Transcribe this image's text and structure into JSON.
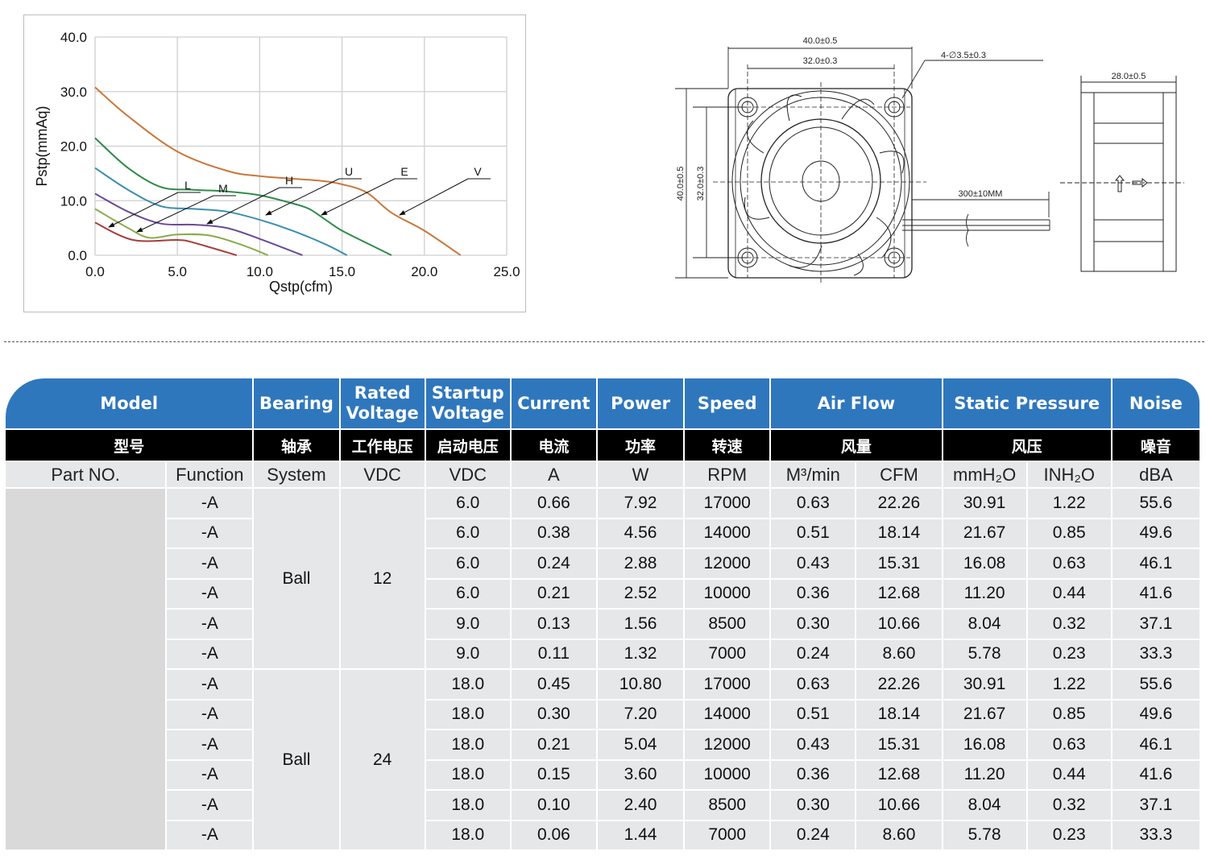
{
  "chart_data": {
    "type": "line",
    "xlabel": "Qstp(cfm)",
    "ylabel": "Pstp(mmAq)",
    "xlim": [
      0,
      25
    ],
    "ylim": [
      0,
      40
    ],
    "x_ticks": [
      "0.0",
      "5.0",
      "10.0",
      "15.0",
      "20.0",
      "25.0"
    ],
    "y_ticks": [
      "0.0",
      "10.0",
      "20.0",
      "30.0",
      "40.0"
    ],
    "grid": true,
    "series": [
      {
        "name": "V",
        "color": "#c9773a",
        "points": [
          [
            0,
            30.8
          ],
          [
            2,
            25.5
          ],
          [
            5,
            19
          ],
          [
            8,
            15.5
          ],
          [
            10,
            14.5
          ],
          [
            13.5,
            13.7
          ],
          [
            15,
            13
          ],
          [
            16.5,
            11.5
          ],
          [
            18,
            7.8
          ],
          [
            20,
            4.5
          ],
          [
            22.2,
            0
          ]
        ]
      },
      {
        "name": "E",
        "color": "#2e8b4a",
        "points": [
          [
            0,
            21.5
          ],
          [
            2,
            16
          ],
          [
            4,
            12.5
          ],
          [
            6,
            12
          ],
          [
            8,
            11.7
          ],
          [
            10,
            11
          ],
          [
            12,
            9.5
          ],
          [
            13,
            8.5
          ],
          [
            14,
            6.5
          ],
          [
            15,
            4.5
          ],
          [
            17,
            1.5
          ],
          [
            18,
            0
          ]
        ]
      },
      {
        "name": "U",
        "color": "#3a8fb0",
        "points": [
          [
            0,
            16
          ],
          [
            2,
            12
          ],
          [
            4,
            9
          ],
          [
            6,
            8.5
          ],
          [
            8,
            8
          ],
          [
            10,
            6.5
          ],
          [
            12,
            4.5
          ],
          [
            14,
            2
          ],
          [
            15.3,
            0
          ]
        ]
      },
      {
        "name": "H",
        "color": "#6a4a95",
        "points": [
          [
            0,
            11.3
          ],
          [
            2,
            8
          ],
          [
            4,
            5.8
          ],
          [
            6,
            5.6
          ],
          [
            8,
            5
          ],
          [
            10,
            3
          ],
          [
            12.6,
            0
          ]
        ]
      },
      {
        "name": "M",
        "color": "#8aab4a",
        "points": [
          [
            0,
            8.5
          ],
          [
            2,
            5
          ],
          [
            3.3,
            3.2
          ],
          [
            5,
            3.8
          ],
          [
            7,
            3.6
          ],
          [
            9,
            1.8
          ],
          [
            10.5,
            0
          ]
        ]
      },
      {
        "name": "L",
        "color": "#a83c3c",
        "points": [
          [
            0,
            6
          ],
          [
            2.3,
            2.8
          ],
          [
            5,
            2.8
          ],
          [
            6,
            2.3
          ],
          [
            8.6,
            0
          ]
        ]
      }
    ]
  },
  "drawing": {
    "width_outer": "40.0±0.5",
    "width_hole": "32.0±0.3",
    "hole_spec": "4-∅3.5±0.3",
    "height_outer": "40.0±0.5",
    "height_hole": "32.0±0.3",
    "lead_length": "300±10MM",
    "depth": "28.0±0.5"
  },
  "table": {
    "header_en": [
      "Model",
      "Bearing",
      "Rated Voltage",
      "Startup Voltage",
      "Current",
      "Power",
      "Speed",
      "Air Flow",
      "Static Pressure",
      "Noise"
    ],
    "header_cn": [
      "型号",
      "轴承",
      "工作电压",
      "启动电压",
      "电流",
      "功率",
      "转速",
      "风量",
      "风压",
      "噪音"
    ],
    "units": [
      "Part NO.",
      "Function",
      "System",
      "VDC",
      "VDC",
      "A",
      "W",
      "RPM",
      "M³/min",
      "CFM",
      "mmH₂O",
      "INH₂O",
      "dBA"
    ],
    "groups": [
      {
        "bearing": "Ball",
        "voltage": "12",
        "rows": [
          [
            "-A",
            "6.0",
            "0.66",
            "7.92",
            "17000",
            "0.63",
            "22.26",
            "30.91",
            "1.22",
            "55.6"
          ],
          [
            "-A",
            "6.0",
            "0.38",
            "4.56",
            "14000",
            "0.51",
            "18.14",
            "21.67",
            "0.85",
            "49.6"
          ],
          [
            "-A",
            "6.0",
            "0.24",
            "2.88",
            "12000",
            "0.43",
            "15.31",
            "16.08",
            "0.63",
            "46.1"
          ],
          [
            "-A",
            "6.0",
            "0.21",
            "2.52",
            "10000",
            "0.36",
            "12.68",
            "11.20",
            "0.44",
            "41.6"
          ],
          [
            "-A",
            "9.0",
            "0.13",
            "1.56",
            "8500",
            "0.30",
            "10.66",
            "8.04",
            "0.32",
            "37.1"
          ],
          [
            "-A",
            "9.0",
            "0.11",
            "1.32",
            "7000",
            "0.24",
            "8.60",
            "5.78",
            "0.23",
            "33.3"
          ]
        ]
      },
      {
        "bearing": "Ball",
        "voltage": "24",
        "rows": [
          [
            "-A",
            "18.0",
            "0.45",
            "10.80",
            "17000",
            "0.63",
            "22.26",
            "30.91",
            "1.22",
            "55.6"
          ],
          [
            "-A",
            "18.0",
            "0.30",
            "7.20",
            "14000",
            "0.51",
            "18.14",
            "21.67",
            "0.85",
            "49.6"
          ],
          [
            "-A",
            "18.0",
            "0.21",
            "5.04",
            "12000",
            "0.43",
            "15.31",
            "16.08",
            "0.63",
            "46.1"
          ],
          [
            "-A",
            "18.0",
            "0.15",
            "3.60",
            "10000",
            "0.36",
            "12.68",
            "11.20",
            "0.44",
            "41.6"
          ],
          [
            "-A",
            "18.0",
            "0.10",
            "2.40",
            "8500",
            "0.30",
            "10.66",
            "8.04",
            "0.32",
            "37.1"
          ],
          [
            "-A",
            "18.0",
            "0.06",
            "1.44",
            "7000",
            "0.24",
            "8.60",
            "5.78",
            "0.23",
            "33.3"
          ]
        ]
      }
    ]
  }
}
